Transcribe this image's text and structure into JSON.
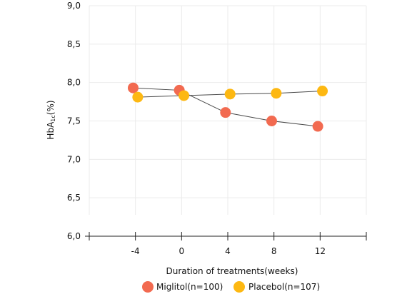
{
  "chart_data": {
    "type": "line",
    "xlabel": "Duration of treatments(weeks)",
    "ylabel": "HbA",
    "ylabel_sub": "1c",
    "ylabel_unit": "(%)",
    "ylim": [
      6.0,
      9.0
    ],
    "yticks": [
      "6,0",
      "6,5",
      "7,0",
      "7,5",
      "8,0",
      "8,5",
      "9,0"
    ],
    "xlim": [
      -8,
      16
    ],
    "xticks": [
      {
        "value": -4,
        "label": "-4"
      },
      {
        "value": 0,
        "label": "0"
      },
      {
        "value": 4,
        "label": "4"
      },
      {
        "value": 8,
        "label": "8"
      },
      {
        "value": 12,
        "label": "12"
      }
    ],
    "grid": true,
    "legend_position": "bottom",
    "series": [
      {
        "name": "Miglitol(n=100)",
        "color": "#f26a50",
        "points": [
          {
            "x": -4,
            "y": 7.93
          },
          {
            "x": 0,
            "y": 7.9
          },
          {
            "x": 4,
            "y": 7.61
          },
          {
            "x": 8,
            "y": 7.5
          },
          {
            "x": 12,
            "y": 7.43
          }
        ]
      },
      {
        "name": "Placebol(n=107)",
        "color": "#fdb812",
        "points": [
          {
            "x": -4,
            "y": 7.81
          },
          {
            "x": 0,
            "y": 7.83
          },
          {
            "x": 4,
            "y": 7.85
          },
          {
            "x": 8,
            "y": 7.86
          },
          {
            "x": 12,
            "y": 7.89
          }
        ]
      }
    ]
  }
}
